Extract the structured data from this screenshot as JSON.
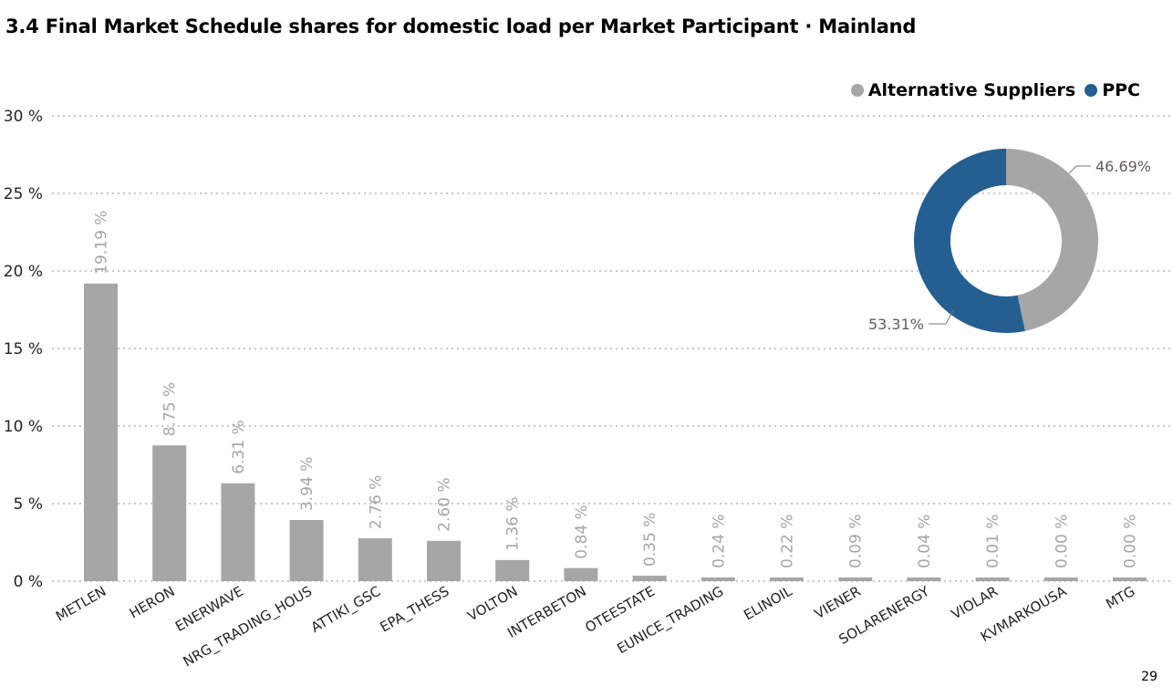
{
  "page": {
    "title": "3.4 Final Market Schedule shares for  domestic load per Market Participant · Mainland",
    "page_number": "29"
  },
  "legend": {
    "items": [
      {
        "label": "Alternative Suppliers",
        "color": "#a6a6a6"
      },
      {
        "label": "PPC",
        "color": "#255f91"
      }
    ]
  },
  "colors": {
    "bar": "#a6a6a6",
    "bar_label": "#a6a6a6",
    "grid": "#c8c8c8",
    "alternative": "#a6a6a6",
    "ppc": "#255f91"
  },
  "chart_data": [
    {
      "type": "bar",
      "categories": [
        "METLEN",
        "HERON",
        "ENERWAVE",
        "NRG_TRADING_HOUS",
        "ATTIKI_GSC",
        "EPA_THESS",
        "VOLTON",
        "INTERBETON",
        "OTEESTATE",
        "EUNICE_TRADING",
        "ELINOIL",
        "VIENER",
        "SOLARENERGY",
        "VIOLAR",
        "KVMARKOUSA",
        "MTG"
      ],
      "values": [
        19.19,
        8.75,
        6.31,
        3.94,
        2.76,
        2.6,
        1.36,
        0.84,
        0.35,
        0.24,
        0.22,
        0.09,
        0.04,
        0.01,
        0.0,
        0.0
      ],
      "value_labels": [
        "19.19 %",
        "8.75 %",
        "6.31 %",
        "3.94 %",
        "2.76 %",
        "2.60 %",
        "1.36 %",
        "0.84 %",
        "0.35 %",
        "0.24 %",
        "0.22 %",
        "0.09 %",
        "0.04 %",
        "0.01 %",
        "0.00 %",
        "0.00 %"
      ],
      "yticks": [
        "0 %",
        "5 %",
        "10 %",
        "15 %",
        "20 %",
        "25 %",
        "30 %"
      ],
      "ylim": [
        0,
        30
      ],
      "grid": true
    },
    {
      "type": "pie",
      "labels": [
        "Alternative Suppliers",
        "PPC"
      ],
      "values": [
        46.69,
        53.31
      ],
      "value_labels": [
        "46.69%",
        "53.31%"
      ],
      "legend_position": "top-right"
    }
  ]
}
